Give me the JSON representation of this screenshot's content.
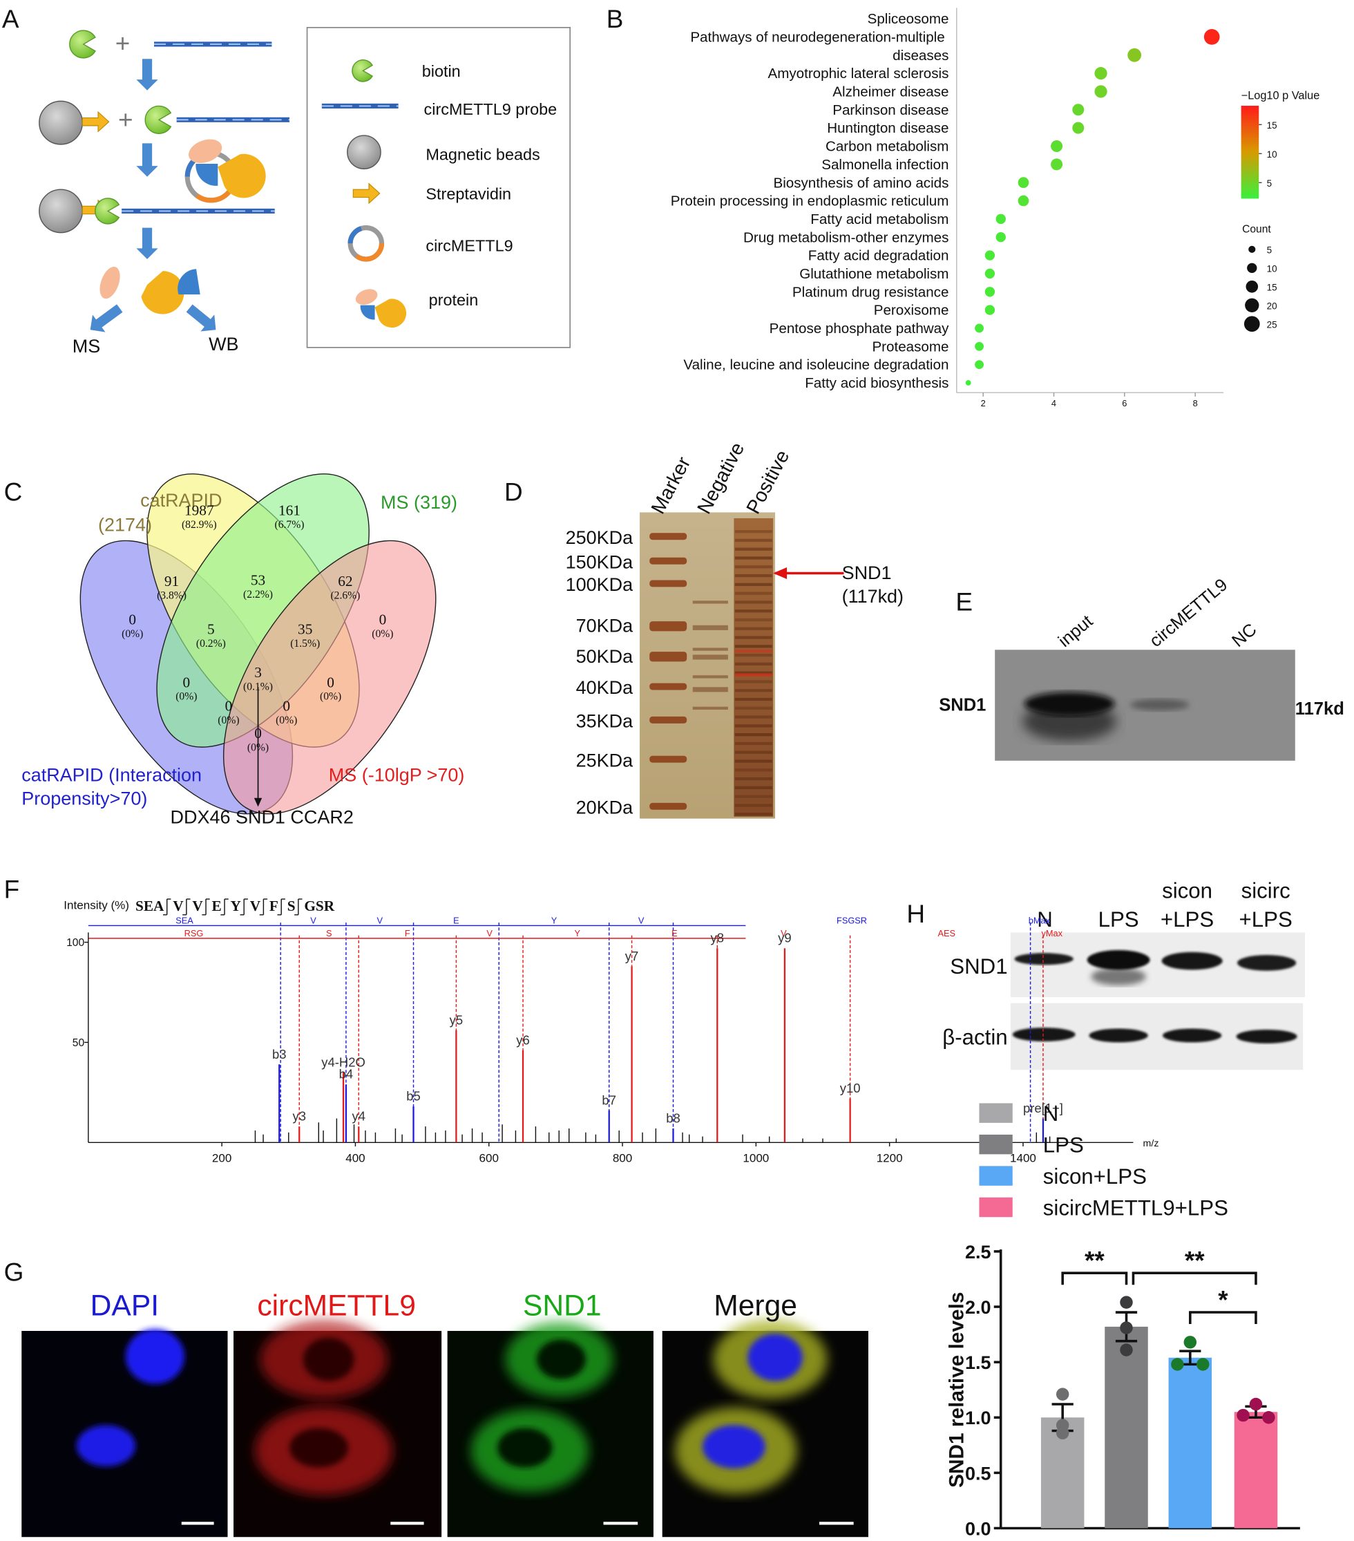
{
  "panel_labels": [
    "A",
    "B",
    "C",
    "D",
    "E",
    "F",
    "G",
    "H"
  ],
  "panel_a": {
    "plus": "+",
    "outputs": [
      "MS",
      "WB"
    ],
    "legend": [
      "biotin",
      "circMETTL9 probe",
      "Magnetic beads",
      "Streptavidin",
      "circMETTL9",
      "protein"
    ]
  },
  "panel_c": {
    "set_labels": [
      "catRAPID",
      "(2174)",
      "MS (319)",
      "catRAPID (Interaction",
      "Propensity>70)",
      "MS (-10lgP >70)"
    ],
    "regions": [
      {
        "count": 1987,
        "percent": "(82.9%)"
      },
      {
        "count": 161,
        "percent": "(6.7%)"
      },
      {
        "count": 91,
        "percent": "(3.8%)"
      },
      {
        "count": 53,
        "percent": "(2.2%)"
      },
      {
        "count": 62,
        "percent": "(2.6%)"
      },
      {
        "count": 0,
        "percent": "(0%)"
      },
      {
        "count": 5,
        "percent": "(0.2%)"
      },
      {
        "count": 35,
        "percent": "(1.5%)"
      },
      {
        "count": 0,
        "percent": "(0%)"
      },
      {
        "count": 0,
        "percent": "(0%)"
      },
      {
        "count": 3,
        "percent": "(0.1%)"
      },
      {
        "count": 0,
        "percent": "(0%)"
      },
      {
        "count": 0,
        "percent": "(0%)"
      },
      {
        "count": 0,
        "percent": "(0%)"
      },
      {
        "count": 0,
        "percent": "(0%)"
      }
    ],
    "shared_genes": "DDX46 SND1 CCAR2"
  },
  "panel_d": {
    "lanes": [
      "Marker",
      "Negative",
      "Positive"
    ],
    "markers": [
      "250KDa",
      "150KDa",
      "100KDa",
      "70KDa",
      "50KDa",
      "40KDa",
      "35KDa",
      "25KDa",
      "20KDa"
    ],
    "target": "SND1",
    "target_size": "(117kd)"
  },
  "panel_e": {
    "lanes": [
      "input",
      "circMETTL9",
      "NC"
    ],
    "protein": "SND1",
    "size": "117kd"
  },
  "panel_g": {
    "channels": [
      "DAPI",
      "circMETTL9",
      "SND1",
      "Merge"
    ]
  },
  "panel_h_blot": {
    "lanes": [
      [
        "N"
      ],
      [
        "LPS"
      ],
      [
        "sicon",
        "+LPS"
      ],
      [
        "sicirc",
        "+LPS"
      ]
    ],
    "proteins": [
      "SND1",
      "β-actin"
    ]
  },
  "chart_data": [
    {
      "type": "dot",
      "categories": [
        "Spliceosome",
        "Pathways of neurodegeneration-multiple diseases",
        "Amyotrophic lateral sclerosis",
        "Alzheimer disease",
        "Parkinson disease",
        "Huntington disease",
        "Carbon metabolism",
        "Salmonella infection",
        "Biosynthesis of amino acids",
        "Protein processing in endoplasmic reticulum",
        "Fatty acid metabolism",
        "Drug metabolism-other enzymes",
        "Fatty acid degradation",
        "Glutathione metabolism",
        "Platinum drug resistance",
        "Peroxisome",
        "Pentose phosphate pathway",
        "Proteasome",
        "Valine, leucine and isoleucine degradation",
        "Fatty acid biosynthesis"
      ],
      "values": [
        8.47,
        6.28,
        5.33,
        5.33,
        4.69,
        4.69,
        4.08,
        4.08,
        3.14,
        3.14,
        2.5,
        2.5,
        2.19,
        2.19,
        2.19,
        2.19,
        1.89,
        1.89,
        1.89,
        1.58
      ],
      "color_values": [
        17.5,
        6,
        5,
        5,
        4.5,
        4.5,
        4,
        4,
        3.5,
        3.5,
        3,
        3,
        3,
        3,
        3,
        3,
        2.8,
        2.8,
        2.8,
        2.5
      ],
      "counts": [
        25,
        19,
        16,
        16,
        14,
        14,
        14,
        14,
        12,
        12,
        10,
        10,
        10,
        10,
        10,
        10,
        8,
        8,
        8,
        3
      ],
      "xlim": [
        1.25,
        8.8
      ],
      "xticks": [
        2,
        4,
        6,
        8
      ],
      "colorbar_title": "−Log10 p Value",
      "clim": [
        2.3,
        18.2
      ],
      "cticks": [
        5,
        10,
        15
      ],
      "colormap": [
        "#3cef3c",
        "#d89a00",
        "#ff1a1a"
      ],
      "size_title": "Count",
      "size_ticks": [
        5,
        10,
        15,
        20,
        25
      ],
      "point_color_outline": "#ffffff"
    },
    {
      "type": "spectrum",
      "y_label": "Intensity (%)",
      "x_label": "m/z",
      "sequence": [
        "SEA",
        "V",
        "V",
        "E",
        "Y",
        "V",
        "F",
        "S",
        "GSR"
      ],
      "xlim": [
        0,
        1565
      ],
      "xticks": [
        200,
        400,
        600,
        800,
        1000,
        1200,
        1400
      ],
      "ylim": [
        0,
        100
      ],
      "yticks": [
        50,
        100
      ],
      "x": [
        286,
        316,
        382,
        386,
        405,
        487,
        551,
        651,
        780,
        814,
        876,
        942,
        1043,
        1141,
        1430,
        250,
        262,
        300,
        345,
        352,
        372,
        398,
        415,
        430,
        460,
        470,
        505,
        520,
        535,
        560,
        575,
        590,
        620,
        640,
        670,
        690,
        705,
        720,
        745,
        760,
        795,
        830,
        850,
        890,
        900,
        920,
        980,
        1020,
        1070,
        1100,
        1210,
        1420,
        1440
      ],
      "values": [
        39,
        8,
        35,
        29,
        8,
        18,
        56,
        46,
        16,
        88,
        7,
        97,
        97,
        22,
        12,
        6,
        4,
        5,
        10,
        6,
        12,
        9,
        6,
        5,
        7,
        4,
        8,
        5,
        6,
        4,
        7,
        5,
        9,
        6,
        8,
        5,
        6,
        7,
        5,
        4,
        6,
        5,
        7,
        5,
        4,
        3,
        4,
        3,
        2,
        2,
        2,
        5,
        3
      ],
      "labels": [
        "b3",
        "y3",
        "y4-H2O",
        "b4",
        "y4",
        "b5",
        "y5",
        "y6",
        "b7",
        "y7",
        "b8",
        "y8",
        "y9",
        "y10",
        "pre[1+]",
        null,
        null,
        null,
        null,
        null,
        null,
        null,
        null,
        null,
        null,
        null,
        null,
        null,
        null,
        null,
        null,
        null,
        null,
        null,
        null,
        null,
        null,
        null,
        null,
        null,
        null,
        null,
        null,
        null,
        null,
        null,
        null,
        null,
        null,
        null,
        null,
        null,
        null
      ],
      "peak_colors": [
        "#1a1ae6",
        "#e61a1a",
        "#e61a1a",
        "#1a1ae6",
        "#e61a1a",
        "#1a1ae6",
        "#e61a1a",
        "#e61a1a",
        "#1a1ae6",
        "#e61a1a",
        "#1a1ae6",
        "#e61a1a",
        "#e61a1a",
        "#e61a1a",
        "#1a1ae6",
        "#111111",
        "#111111",
        "#111111",
        "#111111",
        "#111111",
        "#111111",
        "#111111",
        "#111111",
        "#111111",
        "#111111",
        "#111111",
        "#111111",
        "#111111",
        "#111111",
        "#111111",
        "#111111",
        "#111111",
        "#111111",
        "#111111",
        "#111111",
        "#111111",
        "#111111",
        "#111111",
        "#111111",
        "#111111",
        "#111111",
        "#111111",
        "#111111",
        "#111111",
        "#111111",
        "#111111",
        "#111111",
        "#111111",
        "#111111",
        "#111111",
        "#111111",
        "#111111",
        "#111111"
      ],
      "b_ladder": {
        "labels": [
          "SEA",
          "V",
          "V",
          "E",
          "Y",
          "V",
          "FSGSR",
          "bMax"
        ],
        "x": [
          288,
          386,
          487,
          615,
          780,
          876,
          1411
        ],
        "color": "#1a1ae6"
      },
      "y_ladder": {
        "labels": [
          "RSG",
          "S",
          "F",
          "V",
          "Y",
          "E",
          "V",
          "AES",
          "yMax"
        ],
        "x": [
          316,
          405,
          551,
          651,
          814,
          942,
          1141,
          1430
        ],
        "color": "#e61a1a"
      }
    },
    {
      "type": "bar",
      "categories": [
        "N",
        "LPS",
        "sicon+LPS",
        "sicircMETTL9+LPS"
      ],
      "values": [
        1.0,
        1.82,
        1.54,
        1.05
      ],
      "errors": [
        0.12,
        0.13,
        0.06,
        0.05
      ],
      "points": [
        [
          1.21,
          0.93,
          0.86
        ],
        [
          2.04,
          1.81,
          1.61
        ],
        [
          1.68,
          1.48,
          1.48
        ],
        [
          1.12,
          1.02,
          1.0
        ]
      ],
      "colors": [
        "#a8a8ab",
        "#7f7f81",
        "#58a8f6",
        "#f46a95"
      ],
      "point_colors": [
        "#6e6e70",
        "#3c3c3e",
        "#1a7a2a",
        "#a01050"
      ],
      "y_label": "SND1 relative levels",
      "ylim": [
        0,
        2.5
      ],
      "yticks": [
        {
          "value": 0,
          "label": "0.0"
        },
        0.5,
        {
          "value": 1,
          "label": "1.0"
        },
        1.5,
        {
          "value": 2,
          "label": "2.0"
        },
        2.5
      ],
      "significance": [
        {
          "groups": [
            "N",
            "LPS"
          ],
          "label": "**"
        },
        {
          "groups": [
            "LPS",
            "sicircMETTL9+LPS"
          ],
          "label": "**"
        },
        {
          "groups": [
            "sicon+LPS",
            "sicircMETTL9+LPS"
          ],
          "label": "*"
        }
      ]
    }
  ]
}
